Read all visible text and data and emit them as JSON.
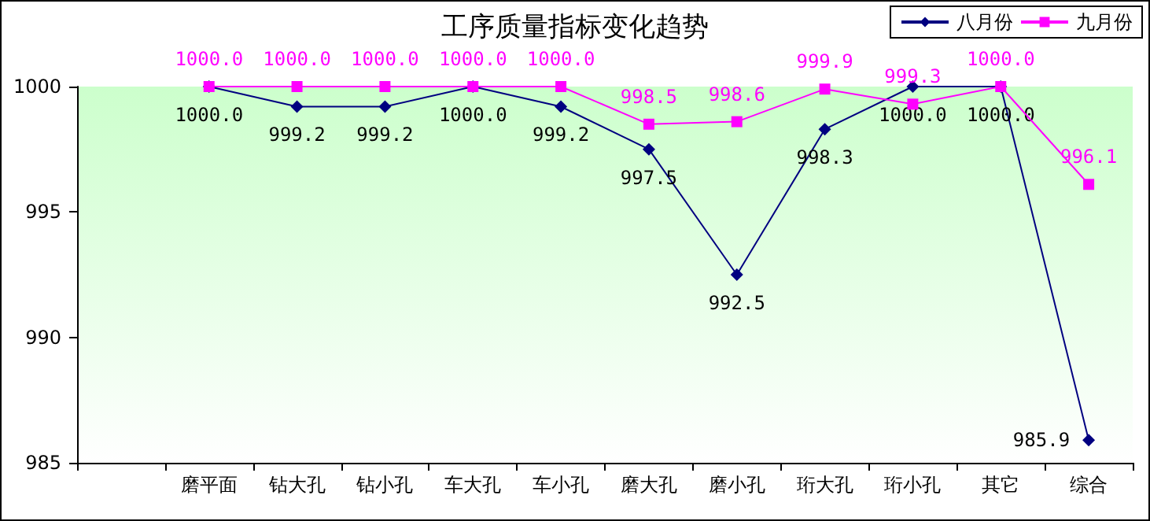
{
  "chart_data": {
    "type": "line",
    "title": "工序质量指标变化趋势",
    "categories": [
      "磨平面",
      "钻大孔",
      "钻小孔",
      "车大孔",
      "车小孔",
      "磨大孔",
      "磨小孔",
      "珩大孔",
      "珩小孔",
      "其它",
      "综合"
    ],
    "series": [
      {
        "name": "八月份",
        "color": "#000080",
        "marker": "diamond",
        "values": [
          1000.0,
          999.2,
          999.2,
          1000.0,
          999.2,
          997.5,
          992.5,
          998.3,
          1000.0,
          1000.0,
          985.9
        ],
        "value_labels": [
          "1000.0",
          "999.2",
          "999.2",
          "1000.0",
          "999.2",
          "997.5",
          "992.5",
          "998.3",
          "1000.0",
          "1000.0",
          "985.9"
        ]
      },
      {
        "name": "九月份",
        "color": "#ff00ff",
        "marker": "square",
        "values": [
          1000.0,
          1000.0,
          1000.0,
          1000.0,
          1000.0,
          998.5,
          998.6,
          999.9,
          999.3,
          1000.0,
          996.1
        ],
        "value_labels": [
          "1000.0",
          "1000.0",
          "1000.0",
          "1000.0",
          "1000.0",
          "998.5",
          "998.6",
          "999.9",
          "999.3",
          "1000.0",
          "996.1"
        ]
      }
    ],
    "ylim": [
      985,
      1000
    ],
    "yticks": [
      985,
      990,
      995,
      1000
    ],
    "grid": false,
    "legend": "top right"
  }
}
